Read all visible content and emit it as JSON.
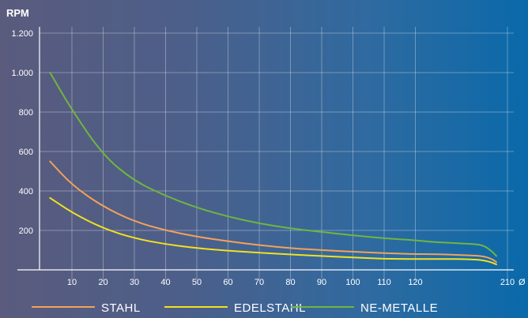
{
  "chart_data": {
    "type": "line",
    "title": "",
    "ylabel": "RPM",
    "xlabel": "Ø",
    "x_ticks": [
      10,
      20,
      30,
      40,
      50,
      60,
      70,
      80,
      90,
      100,
      110,
      120,
      210
    ],
    "y_ticks": [
      {
        "value": 200,
        "label": "200"
      },
      {
        "value": 400,
        "label": "400"
      },
      {
        "value": 600,
        "label": "600"
      },
      {
        "value": 800,
        "label": "800"
      },
      {
        "value": 1000,
        "label": "1.000"
      },
      {
        "value": 1200,
        "label": "1.200"
      }
    ],
    "ylim": [
      0,
      1200
    ],
    "grid": true,
    "legend_position": "bottom",
    "series": [
      {
        "name": "STAHL",
        "color": "#f4a259",
        "points": [
          [
            3,
            550
          ],
          [
            10,
            430
          ],
          [
            20,
            320
          ],
          [
            30,
            245
          ],
          [
            40,
            200
          ],
          [
            50,
            168
          ],
          [
            60,
            145
          ],
          [
            70,
            125
          ],
          [
            80,
            110
          ],
          [
            90,
            100
          ],
          [
            100,
            92
          ],
          [
            110,
            85
          ],
          [
            120,
            80
          ],
          [
            130,
            80
          ],
          [
            140,
            78
          ],
          [
            150,
            75
          ],
          [
            160,
            72
          ],
          [
            165,
            68
          ],
          [
            170,
            55
          ],
          [
            173,
            40
          ]
        ]
      },
      {
        "name": "EDELSTAHL",
        "color": "#f2e21e",
        "points": [
          [
            3,
            365
          ],
          [
            10,
            290
          ],
          [
            20,
            210
          ],
          [
            30,
            160
          ],
          [
            40,
            130
          ],
          [
            50,
            110
          ],
          [
            60,
            97
          ],
          [
            70,
            87
          ],
          [
            80,
            78
          ],
          [
            90,
            70
          ],
          [
            100,
            63
          ],
          [
            110,
            56
          ],
          [
            120,
            55
          ],
          [
            130,
            55
          ],
          [
            140,
            55
          ],
          [
            150,
            55
          ],
          [
            160,
            52
          ],
          [
            165,
            48
          ],
          [
            170,
            38
          ],
          [
            173,
            28
          ]
        ]
      },
      {
        "name": "NE-METALLE",
        "color": "#6fb63e",
        "points": [
          [
            3,
            1000
          ],
          [
            10,
            810
          ],
          [
            20,
            580
          ],
          [
            30,
            450
          ],
          [
            40,
            375
          ],
          [
            50,
            315
          ],
          [
            60,
            270
          ],
          [
            70,
            235
          ],
          [
            80,
            210
          ],
          [
            90,
            192
          ],
          [
            100,
            175
          ],
          [
            110,
            160
          ],
          [
            120,
            150
          ],
          [
            130,
            142
          ],
          [
            140,
            138
          ],
          [
            150,
            134
          ],
          [
            160,
            130
          ],
          [
            165,
            122
          ],
          [
            170,
            95
          ],
          [
            173,
            70
          ]
        ]
      }
    ]
  }
}
